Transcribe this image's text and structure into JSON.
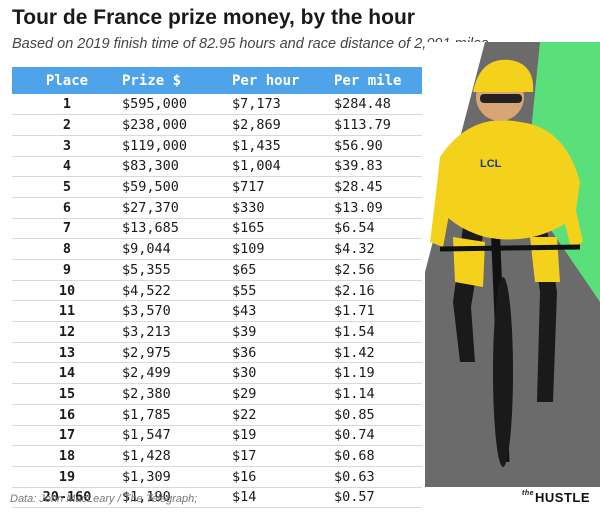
{
  "title": "Tour de France prize money, by the hour",
  "subtitle": "Based on 2019 finish time of 82.95 hours and race distance of 2,091 miles",
  "table": {
    "headers": [
      "Place",
      "Prize $",
      "Per hour",
      "Per mile"
    ],
    "rows": [
      [
        "1",
        "$595,000",
        "$7,173",
        "$284.48"
      ],
      [
        "2",
        "$238,000",
        "$2,869",
        "$113.79"
      ],
      [
        "3",
        "$119,000",
        "$1,435",
        "$56.90"
      ],
      [
        "4",
        "$83,300",
        "$1,004",
        "$39.83"
      ],
      [
        "5",
        "$59,500",
        "$717",
        "$28.45"
      ],
      [
        "6",
        "$27,370",
        "$330",
        "$13.09"
      ],
      [
        "7",
        "$13,685",
        "$165",
        "$6.54"
      ],
      [
        "8",
        "$9,044",
        "$109",
        "$4.32"
      ],
      [
        "9",
        "$5,355",
        "$65",
        "$2.56"
      ],
      [
        "10",
        "$4,522",
        "$55",
        "$2.16"
      ],
      [
        "11",
        "$3,570",
        "$43",
        "$1.71"
      ],
      [
        "12",
        "$3,213",
        "$39",
        "$1.54"
      ],
      [
        "13",
        "$2,975",
        "$36",
        "$1.42"
      ],
      [
        "14",
        "$2,499",
        "$30",
        "$1.19"
      ],
      [
        "15",
        "$2,380",
        "$29",
        "$1.14"
      ],
      [
        "16",
        "$1,785",
        "$22",
        "$0.85"
      ],
      [
        "17",
        "$1,547",
        "$19",
        "$0.74"
      ],
      [
        "18",
        "$1,428",
        "$17",
        "$0.68"
      ],
      [
        "19",
        "$1,309",
        "$16",
        "$0.63"
      ],
      [
        "20-160",
        "$1,190",
        "$14",
        "$0.57"
      ]
    ]
  },
  "footer": {
    "source": "Data: John MacLeary / The Telegraph;",
    "logo_prefix": "the",
    "logo_text": "HUSTLE"
  },
  "photo": {
    "subject": "cyclist-in-yellow-jersey",
    "jersey_text": "LCL",
    "colors": {
      "jersey": "#f4d21c",
      "bg_gray": "#6b6b6b",
      "bg_green": "#59e07a",
      "header_blue": "#4fa3e8"
    }
  }
}
